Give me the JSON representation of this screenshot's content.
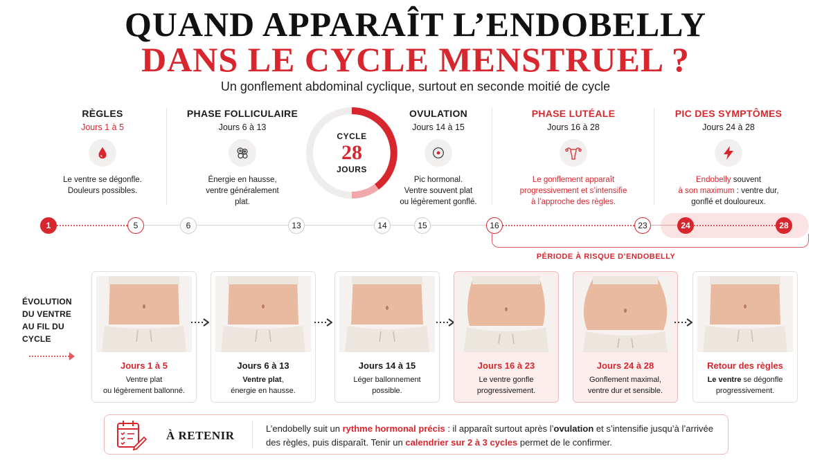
{
  "title": {
    "line1": "QUAND APPARAÎT L’ENDOBELLY",
    "line2": "DANS LE CYCLE MENSTRUEL ?"
  },
  "subtitle": "Un gonflement abdominal cyclique, surtout en seconde moitié de cycle",
  "cycle": {
    "label_top": "CYCLE",
    "number": "28",
    "label_bottom": "JOURS"
  },
  "phases": [
    {
      "title": "RÈGLES",
      "days": "Jours 1 à 5",
      "icon": "blood-drop-icon",
      "desc1": "Le ventre se dégonfle.",
      "desc2": "Douleurs possibles."
    },
    {
      "title": "PHASE FOLLICULAIRE",
      "days": "Jours 6 à 13",
      "icon": "follicles-icon",
      "desc1": "Énergie en hausse,",
      "desc2": "ventre généralement",
      "desc3": "plat."
    },
    {
      "title": "OVULATION",
      "days": "Jours 14 à 15",
      "icon": "ovum-icon",
      "desc1": "Pic hormonal.",
      "desc2": "Ventre souvent plat",
      "desc3": "ou légèrement gonflé."
    },
    {
      "title": "PHASE LUTÉALE",
      "days": "Jours 16 à 28",
      "icon": "uterus-icon",
      "desc1": "Le gonflement apparaît",
      "desc2": "progressivement et s’intensifie",
      "desc3": "à l’approche des règles."
    },
    {
      "title": "PIC DES SYMPTÔMES",
      "days": "Jours 24 à 28",
      "icon": "lightning-icon",
      "desc1a": "Endobelly",
      "desc1b": " souvent",
      "desc2a": "à son maximum",
      "desc2b": " : ventre dur,",
      "desc3": "gonflé et douloureux."
    }
  ],
  "timeline": [
    "1",
    "5",
    "6",
    "13",
    "14",
    "15",
    "16",
    "23",
    "24",
    "28"
  ],
  "risk_label": "PÉRIODE À RISQUE D’ENDOBELLY",
  "evolution": {
    "line1": "ÉVOLUTION",
    "line2": "DU VENTRE",
    "line3": "AU FIL DU",
    "line4": "CYCLE"
  },
  "cards": [
    {
      "label": "Jours 1 à 5",
      "desc1": "Ventre plat",
      "desc2": "ou légèrement ballonné."
    },
    {
      "label": "Jours 6 à 13",
      "desc1a": "Ventre plat",
      "desc1b": ",",
      "desc2": "énergie en hausse."
    },
    {
      "label": "Jours 14 à 15",
      "desc1": "Léger ballonnement",
      "desc2": "possible."
    },
    {
      "label": "Jours 16 à 23",
      "desc1": "Le ventre gonfle",
      "desc2": "progressivement."
    },
    {
      "label": "Jours 24 à 28",
      "desc1": "Gonflement maximal,",
      "desc2": "ventre dur et sensible."
    },
    {
      "label": "Retour des règles",
      "desc1a": "Le ventre",
      "desc1b": " se dégonfle",
      "desc2": "progressivement."
    }
  ],
  "retenir": {
    "title": "À RETENIR",
    "t1": "L’endobelly suit un ",
    "t2": "rythme hormonal précis",
    "t3": " : il apparaît surtout après l’",
    "t4": "ovulation",
    "t5": " et s’intensifie jusqu’à l’arrivée des règles, puis disparaît. Tenir un ",
    "t6": "calendrier sur 2 à 3 cycles",
    "t7": " permet de le confirmer."
  },
  "colors": {
    "accent": "#d8262e",
    "highlight_bg": "#fdeeee",
    "skin": "#e9b9a0",
    "fabric": "#ece6de"
  }
}
